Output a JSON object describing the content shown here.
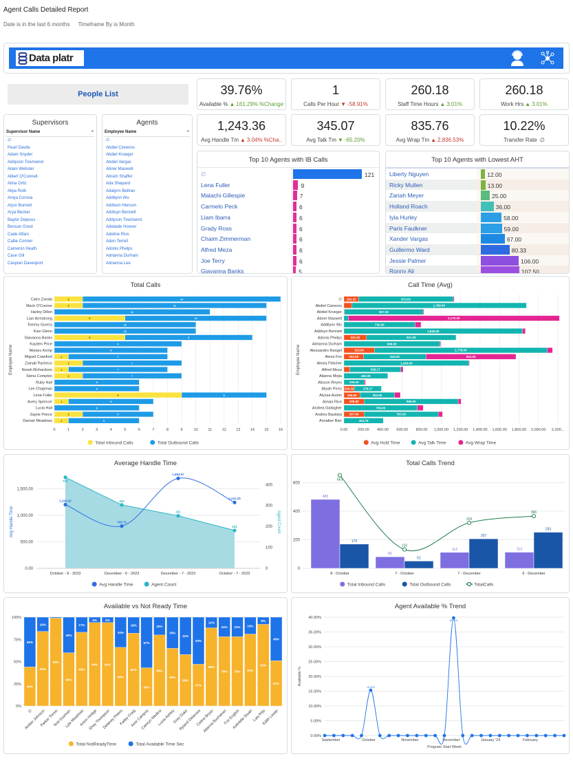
{
  "report": {
    "title": "Agent Calls Detailed Report",
    "filters": [
      "Date is in the last 6 months",
      "Timeframe By is Month"
    ]
  },
  "header": {
    "logo_text": "Data platr",
    "brand_color": "#1e74e8",
    "icons": [
      "agent-headset-icon",
      "network-icon"
    ]
  },
  "people_list": {
    "label": "People List"
  },
  "kpis": [
    {
      "value": "39.76%",
      "label": "Available %",
      "dir": "up",
      "change": "161.29%",
      "suffix": "%Change"
    },
    {
      "value": "1",
      "label": "Calls Per Hour",
      "dir": "down",
      "change": "-58.91%",
      "suffix": ""
    },
    {
      "value": "260.18",
      "label": "Staff Time Hours",
      "dir": "up",
      "change": "3.01%",
      "suffix": ""
    },
    {
      "value": "260.18",
      "label": "Work Hrs",
      "dir": "up",
      "change": "3.01%",
      "suffix": ""
    },
    {
      "value": "1,243.36",
      "label": "Avg Handle Tm",
      "dir": "up-bad",
      "change": "3.04%",
      "suffix": "%Cha.."
    },
    {
      "value": "345.07",
      "label": "Avg Talk Tm",
      "dir": "down-good",
      "change": "-65.20%",
      "suffix": ""
    },
    {
      "value": "835.76",
      "label": "Avg Wrap Tm",
      "dir": "up-bad",
      "change": "2,836.53%",
      "suffix": ""
    },
    {
      "value": "10.22%",
      "label": "Transfer Rate",
      "dir": "none",
      "change": "∅",
      "suffix": ""
    }
  ],
  "supervisors": {
    "title": "Supervisors",
    "column": "Supervisor Name",
    "items": [
      "∅",
      "Pearl Davila",
      "Adam Snyder",
      "Addyson Townsend",
      "Ailani Webster",
      "Albert O'Connell",
      "Alina Ortiz",
      "Aliya Roth",
      "Aniya Corona",
      "Arjun Burnett",
      "Arya Becker",
      "Baylor Dejesus",
      "Benson Good",
      "Cade Alfaro",
      "Callie Conner",
      "Cameron Heath",
      "Case Gill",
      "Caspian Davenport"
    ]
  },
  "agents": {
    "title": "Agents",
    "column": "Employee Name",
    "items": [
      "∅",
      "Abdiel Cisneros",
      "Abdiel Krueger",
      "Abdiel Vargas",
      "Abner Maxwell",
      "Abram Shaffer",
      "Ada Shepard",
      "Adalynn Beltran",
      "Addilynn Wu",
      "Addison Henson",
      "Addisyn Bennett",
      "Addyson Townsend",
      "Adelaide Hoover",
      "Adeline Rios",
      "Aden Terrell",
      "Adonis Phelps",
      "Adrianna Durham",
      "Adrianna Lee"
    ]
  },
  "top_ib": {
    "title": "Top 10 Agents with IB Calls",
    "color_first": "#1e74e8",
    "color_rest": "#e0309a",
    "rows": [
      {
        "name": "∅",
        "value": 121
      },
      {
        "name": "Lena Fuller",
        "value": 9
      },
      {
        "name": "Malachi Gillespie",
        "value": 7
      },
      {
        "name": "Carmelo Peck",
        "value": 6
      },
      {
        "name": "Liam Ibarra",
        "value": 6
      },
      {
        "name": "Grady Ross",
        "value": 6
      },
      {
        "name": "Chaim Zimmerman",
        "value": 6
      },
      {
        "name": "Alfred Meza",
        "value": 6
      },
      {
        "name": "Joe Terry",
        "value": 6
      },
      {
        "name": "Giavanna Banks",
        "value": 5
      }
    ]
  },
  "top_aht": {
    "title": "Top 10 Agents with Lowest AHT",
    "rows": [
      {
        "name": "Liberty Nguyen",
        "value": "12.00",
        "color": "#7cb342"
      },
      {
        "name": "Ricky Mullen",
        "value": "13.00",
        "color": "#7cb342"
      },
      {
        "name": "Zariah Meyer",
        "value": "25.00",
        "color": "#5dbb7d"
      },
      {
        "name": "Holland Roach",
        "value": "36.00",
        "color": "#40c0b8"
      },
      {
        "name": "Iyla Hurley",
        "value": "58.00",
        "color": "#2b9ee6"
      },
      {
        "name": "Paris Faulkner",
        "value": "59.00",
        "color": "#2b9ee6"
      },
      {
        "name": "Xander Vargas",
        "value": "67.00",
        "color": "#1e88e5"
      },
      {
        "name": "Guillermo Ward",
        "value": "80.33",
        "color": "#2f6be0"
      },
      {
        "name": "Jessie Palmer",
        "value": "106.00",
        "color": "#8e4fe0"
      },
      {
        "name": "Ronny Ali",
        "value": "107.50",
        "color": "#9b4fe0"
      }
    ]
  },
  "chart_data": [
    {
      "id": "total-calls",
      "type": "bar",
      "orientation": "horizontal",
      "stacked": true,
      "title": "Total Calls",
      "ylabel": "Employee Name",
      "xlabel": "",
      "xlim": [
        0,
        16
      ],
      "grid": true,
      "legend": "bottom",
      "categories": [
        "Cairo Zavala",
        "Mack O'Connor",
        "Harley Dillon",
        "Lian Armstrong",
        "Tommy Guerra",
        "Kian Glenn",
        "Giavanna Banks",
        "Kayden Price",
        "Moises Kemp",
        "Miguel Crawford",
        "Zainab Pacheco",
        "Norah Richardson",
        "Siena Compton",
        "Ruby Hall",
        "Lee Chapman",
        "Lena Fuller",
        "Avery Spencer",
        "Lucia Hall",
        "Zayne Ponce",
        "Damari Meadows"
      ],
      "series": [
        {
          "name": "Total Inbound Calls",
          "color": "#fbe23e",
          "values": [
            2,
            2,
            0,
            5,
            0,
            0,
            5,
            0,
            0,
            1,
            2,
            1,
            2,
            0,
            0,
            9,
            1,
            0,
            2,
            1
          ]
        },
        {
          "name": "Total Outbound Calls",
          "color": "#1e9be6",
          "values": [
            14,
            13,
            11,
            10,
            10,
            10,
            9,
            9,
            8,
            7,
            7,
            7,
            7,
            6,
            6,
            6,
            6,
            6,
            5,
            5
          ]
        }
      ],
      "xticks": [
        "0",
        "1",
        "2",
        "3",
        "4",
        "5",
        "6",
        "7",
        "8",
        "9",
        "10",
        "11",
        "12",
        "13",
        "14",
        "15",
        "16"
      ]
    },
    {
      "id": "call-time",
      "type": "bar",
      "orientation": "horizontal",
      "stacked": true,
      "title": "Call Time (Avg)",
      "ylabel": "Employee Name",
      "xlabel": "",
      "xlim": [
        0,
        2200
      ],
      "grid": true,
      "legend": "bottom",
      "categories": [
        "∅",
        "Abdiel Cisneros",
        "Abdiel Krueger",
        "Abner Maxwell",
        "Addilynn Wu",
        "Addisyn Bennett",
        "Adonis Phelps",
        "Adrianna Durham",
        "Alessandro Rangel",
        "Alexa Fox",
        "Alexia Fletcher",
        "Alfred Meza",
        "Alianna Mejia",
        "Alisson Reyes",
        "Aliyah Perry",
        "Alyssa Austin",
        "Amaia Rice",
        "Andrea Gallagher",
        "Andres Bautista",
        "Annalise Barr"
      ],
      "series": [
        {
          "name": "Avg Hold Time",
          "color": "#f4511e",
          "values": [
            151.32,
            79,
            6.5,
            0,
            0,
            0,
            231.5,
            0,
            313,
            202,
            0,
            60.33,
            0,
            0,
            106.33,
            165.5,
            208.5,
            0,
            207,
            0
          ]
        },
        {
          "name": "Avg Talk Time",
          "color": "#12b5b0",
          "values": [
            973.02,
            1798,
            807.5,
            46,
            732,
            1836,
            921,
            986,
            1778,
            643,
            1284,
            526.17,
            450,
            209,
            279.17,
            354.5,
            966.5,
            756,
            763,
            404.75
          ]
        },
        {
          "name": "Avg Wrap Time",
          "color": "#e52592",
          "values": [
            9.2,
            0,
            8,
            2170,
            60,
            29,
            0,
            9,
            54,
            923.5,
            7,
            22,
            0,
            12,
            0,
            60,
            30,
            59.6,
            44,
            0
          ]
        }
      ],
      "xticks": [
        "0.00",
        "200.00",
        "400.00",
        "600.00",
        "800.00",
        "1,000.00",
        "1,200.00",
        "1,400.00",
        "1,600.00",
        "1,800.00",
        "2,000.00",
        "2,200..."
      ]
    },
    {
      "id": "aht",
      "type": "line",
      "title": "Average Handle Time",
      "categories": [
        "October - 8 - 2023",
        "December - 6 - 2023",
        "December - 7 - 2023",
        "October - 7 - 2023"
      ],
      "legend": "bottom",
      "series": [
        {
          "name": "Avg Handle Time",
          "axis": "left",
          "color": "#2f6fe0",
          "values": [
            1200.92,
            795.75,
            1694.97,
            1241.25
          ],
          "labels": [
            "1,200.92",
            "795.75",
            "1,694.97",
            "1,241.25"
          ]
        },
        {
          "name": "Agent Count",
          "axis": "right",
          "type": "area",
          "color": "#2bb5c9",
          "values": [
            435,
            303,
            251,
            181
          ],
          "labels": [
            "435",
            "303",
            "251",
            "181"
          ]
        }
      ],
      "ylabel": "Avg Handle Time",
      "ylabel_right": "Agent Count",
      "ylim": [
        0,
        1750
      ],
      "ylim_right": [
        0,
        460
      ],
      "yticks": [
        "0.00",
        "500.00",
        "1,000.00",
        "1,500.00"
      ],
      "yticks_right": [
        "0",
        "100",
        "200",
        "300",
        "400"
      ]
    },
    {
      "id": "calls-trend",
      "type": "bar",
      "title": "Total Calls Trend",
      "categories": [
        "8 - October",
        "7 - October",
        "7 - December",
        "6 - December"
      ],
      "legend": "bottom",
      "ylim": [
        0,
        680
      ],
      "yticks": [
        "0",
        "200",
        "400",
        "600"
      ],
      "series": [
        {
          "name": "Total Inbound Calls",
          "color": "#7e6fe0",
          "values": [
            483,
            81,
            112,
            113
          ]
        },
        {
          "name": "Total Outbound Calls",
          "color": "#1a56a8",
          "values": [
            170,
            51,
            207,
            253
          ]
        },
        {
          "name": "TotalCalls",
          "type": "line",
          "color": "#1e7a4a",
          "values": [
            653,
            132,
            319,
            366
          ]
        }
      ]
    },
    {
      "id": "avail-vs-nr",
      "type": "bar",
      "stacked": true,
      "percent": true,
      "title": "Available vs Not Ready Time",
      "legend": "bottom",
      "yticks": [
        "0%",
        "25%",
        "50%",
        "75%",
        "100%"
      ],
      "categories": [
        "∅",
        "Amber Johnson",
        "Parker Torres",
        "Noe Guzman",
        "Lyla Meadows",
        "Axton Hodge",
        "Shay Thompson",
        "Delaney Peters",
        "Kailey Craig",
        "Amir Campos",
        "Camryn Medina",
        "Lucia Ashley",
        "Grey Duke",
        "Ryland Delarosa",
        "Celine Bryan",
        "Alianna Buchanan",
        "Fox English",
        "Aubrielle Stuart",
        "Luis Pitts",
        "Edith Lester"
      ],
      "series": [
        {
          "name": "Total NotReadyTime",
          "color": "#f7b32b",
          "values": [
            44,
            84,
            99,
            60,
            83,
            94,
            94,
            66,
            82,
            43,
            80,
            65,
            58,
            47,
            88,
            78,
            78,
            81,
            92,
            51
          ]
        },
        {
          "name": "Total Available Time Sec",
          "color": "#1f73e8",
          "values": [
            56,
            16,
            1,
            40,
            17,
            6,
            6,
            34,
            18,
            57,
            20,
            35,
            42,
            53,
            12,
            22,
            22,
            19,
            8,
            49
          ]
        }
      ]
    },
    {
      "id": "avail-trend",
      "type": "line",
      "title": "Agent Available % Trend",
      "xlabel": "Program Start Week",
      "ylabel": "Available %",
      "ylim": [
        0,
        40
      ],
      "legend": "none",
      "yticks": [
        "0.00%",
        "5.00%",
        "10.00%",
        "15.00%",
        "20.00%",
        "25.00%",
        "30.00%",
        "35.00%",
        "40.00%"
      ],
      "xticks": [
        "September",
        "October",
        "November",
        "December",
        "January '24",
        "February"
      ],
      "series": [
        {
          "name": "",
          "color": "#1f73e8",
          "values": [
            0,
            0,
            0,
            0,
            0,
            15.32,
            0,
            0,
            0,
            0,
            0,
            0,
            0,
            0,
            39.76,
            0,
            0,
            0,
            0,
            0,
            0,
            0,
            0,
            0,
            0,
            0,
            0
          ],
          "labels": {
            "5": "15.32%",
            "14": "39.76%"
          }
        }
      ]
    }
  ]
}
